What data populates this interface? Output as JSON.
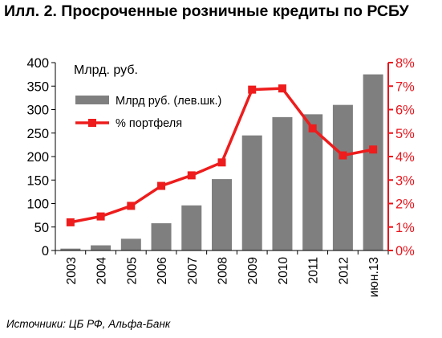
{
  "figure": {
    "title": "Илл. 2. Просроченные розничные кредиты по РСБУ",
    "source": "Источники: ЦБ РФ, Альфа-Банк"
  },
  "colors": {
    "bars": "#7f7f7f",
    "line": "#ee1c1c",
    "right_axis": "#e8141c",
    "left_axis": "#000000"
  },
  "chart_data": {
    "type": "bar",
    "categories": [
      "2003",
      "2004",
      "2005",
      "2006",
      "2007",
      "2008",
      "2009",
      "2010",
      "2011",
      "2012",
      "июн.13"
    ],
    "unit_label": "Млрд. руб.",
    "legend_position": "top-left",
    "grid": false,
    "series": [
      {
        "name": "Млрд руб. (лев.шк.)",
        "type": "bar",
        "axis": "left",
        "values": [
          4,
          11,
          25,
          58,
          96,
          152,
          245,
          284,
          290,
          310,
          375
        ]
      },
      {
        "name": "% портфеля",
        "type": "line",
        "axis": "right",
        "values": [
          1.2,
          1.45,
          1.9,
          2.75,
          3.2,
          3.75,
          6.85,
          6.9,
          5.2,
          4.05,
          4.3
        ]
      }
    ],
    "y_left": {
      "min": 0,
      "max": 400,
      "step": 50,
      "ticks": [
        "0",
        "50",
        "100",
        "150",
        "200",
        "250",
        "300",
        "350",
        "400"
      ]
    },
    "y_right": {
      "min": 0,
      "max": 8,
      "step": 1,
      "ticks": [
        "0%",
        "1%",
        "2%",
        "3%",
        "4%",
        "5%",
        "6%",
        "7%",
        "8%"
      ]
    }
  }
}
